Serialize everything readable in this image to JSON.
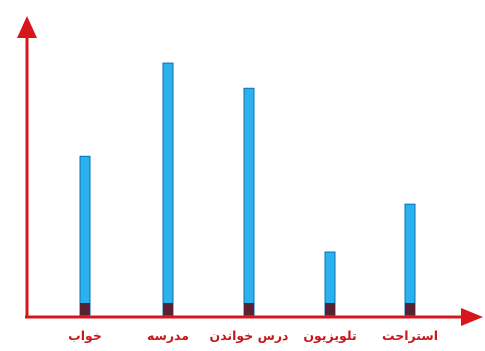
{
  "chart_data": {
    "type": "bar",
    "categories": [
      "خواب",
      "مدرسه",
      "درس خواندن",
      "تلویزیون",
      "استراحت"
    ],
    "values": [
      63,
      100,
      90,
      25,
      44
    ],
    "ylim": [
      0,
      104
    ],
    "grid": false,
    "legend": "none",
    "colors": {
      "bar_fill": "#29B2EE",
      "bar_stroke": "#0E6FB8",
      "bar_base": "#5A2230",
      "axis": "#D8151B",
      "label": "#C8171C"
    }
  }
}
